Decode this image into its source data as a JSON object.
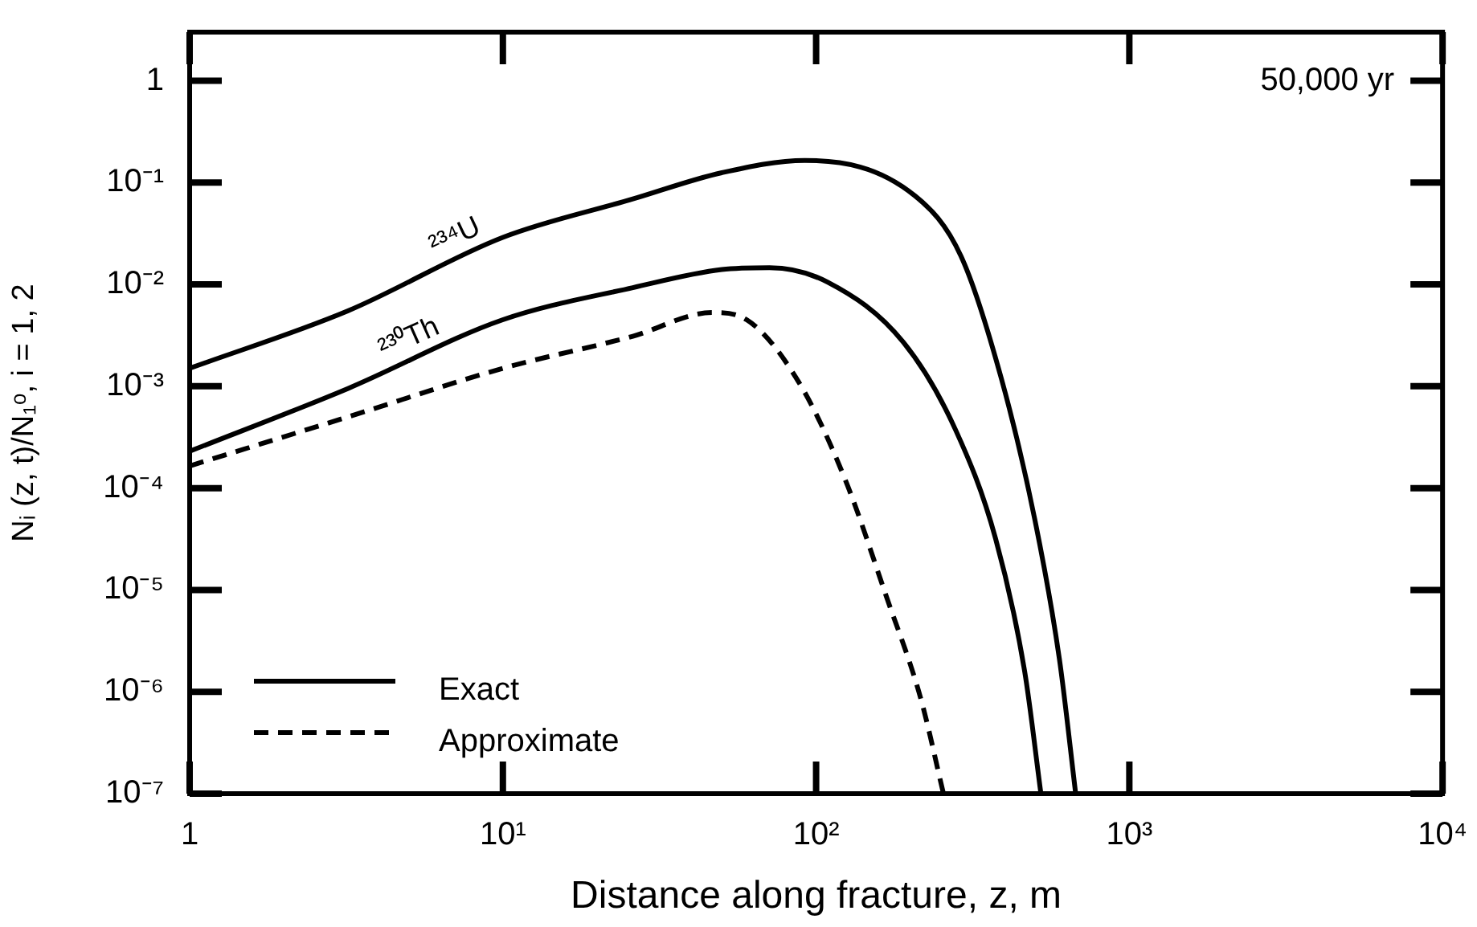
{
  "chart_data": {
    "type": "line",
    "xlabel": "Distance along fracture, z, m",
    "ylabel": "Nᵢ (z, t)/N₁ᵒ, i = 1, 2",
    "log": "xy",
    "grid": false,
    "legend": "bottom left",
    "marker": "none",
    "xlim": [
      1,
      10000
    ],
    "xticks": [
      1,
      {
        "value": 10,
        "label": "10¹"
      },
      {
        "value": 100,
        "label": "10²"
      },
      {
        "value": 1000,
        "label": "10³"
      },
      {
        "value": 10000,
        "label": "10⁴"
      }
    ],
    "ylim": [
      1e-07,
      3
    ],
    "yticks": [
      1,
      {
        "value": 0.1,
        "label": "10⁻¹"
      },
      {
        "value": 0.01,
        "label": "10⁻²"
      },
      {
        "value": 0.001,
        "label": "10⁻³"
      },
      {
        "value": 0.0001,
        "label": "10⁻⁴"
      },
      {
        "value": 1e-05,
        "label": "10⁻⁵"
      },
      {
        "value": 1e-06,
        "label": "10⁻⁶"
      },
      {
        "value": 1e-07,
        "label": "10⁻⁷"
      }
    ],
    "annotations": [
      "50,000 yr",
      "²³⁴U",
      "²³⁰Th"
    ],
    "series": [
      {
        "name": "Exact",
        "color": "#000000",
        "line_style": "solid",
        "x": [
          1,
          3.2,
          10,
          26,
          50,
          92,
          207,
          290,
          390,
          500,
          598,
          674
        ],
        "values": [
          0.0015,
          0.0055,
          0.029,
          0.069,
          0.125,
          0.165,
          0.074,
          0.019,
          0.0012,
          4.8e-05,
          2.1e-06,
          1e-07
        ]
      },
      {
        "color": "#000000",
        "line_style": "solid",
        "x": [
          1,
          3.2,
          10,
          26,
          50,
          71,
          109,
          190,
          278,
          374,
          463,
          522
        ],
        "values": [
          0.00023,
          0.00095,
          0.0045,
          0.0093,
          0.014,
          0.0146,
          0.0105,
          0.0027,
          0.00038,
          3.2e-05,
          1.6e-06,
          1e-07
        ]
      },
      {
        "name": "Approximate",
        "color": "#000000",
        "line_style": "dashed",
        "x": [
          1,
          3.2,
          10,
          26,
          46.6,
          60,
          88,
          124,
          167,
          216,
          255
        ],
        "values": [
          0.000165,
          0.0005,
          0.0015,
          0.0031,
          0.0053,
          0.0045,
          0.0011,
          0.00012,
          8.9e-06,
          8.5e-07,
          1e-07
        ]
      }
    ]
  }
}
